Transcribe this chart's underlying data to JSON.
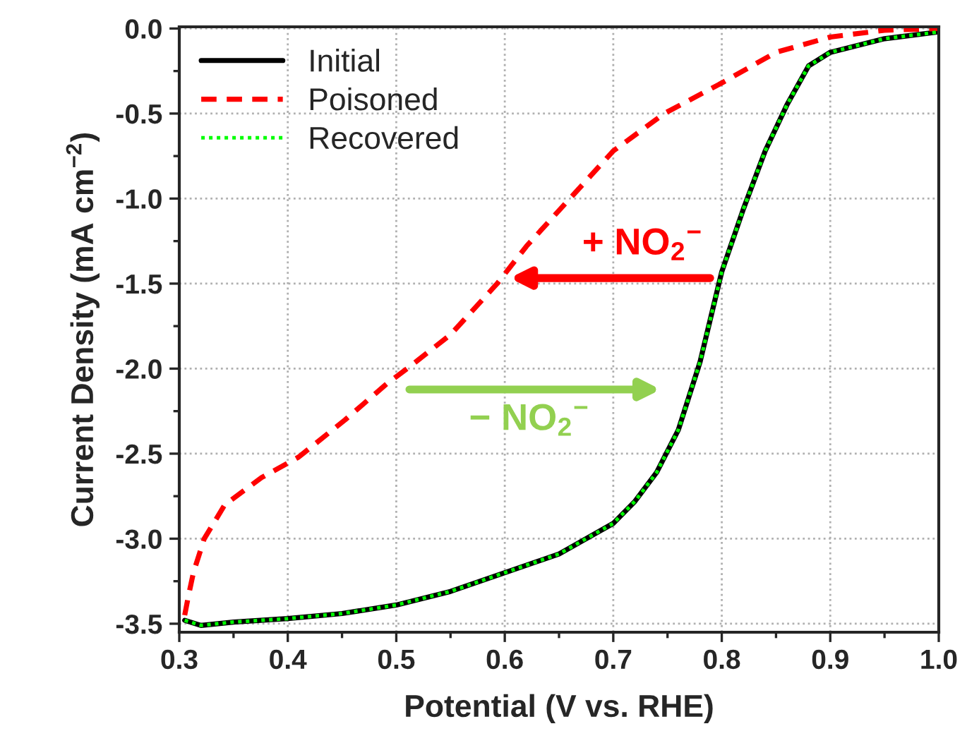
{
  "chart_data": {
    "type": "line",
    "xlabel": "Potential (V vs. RHE)",
    "ylabel": "Current Density (mA cm$^{−2}$)",
    "xlim": [
      0.3,
      1.0
    ],
    "xticks": [
      {
        "value": 0.3,
        "label": "0.3"
      },
      {
        "value": 0.4,
        "label": "0.4"
      },
      {
        "value": 0.5,
        "label": "0.5"
      },
      {
        "value": 0.6,
        "label": "0.6"
      },
      {
        "value": 0.7,
        "label": "0.7"
      },
      {
        "value": 0.8,
        "label": "0.8"
      },
      {
        "value": 0.9,
        "label": "0.9"
      },
      {
        "value": 1.0,
        "label": "1.0"
      }
    ],
    "ylim": [
      -3.55,
      0.01
    ],
    "yticks": [
      {
        "value": 0.0,
        "label": "0.0"
      },
      {
        "value": -0.5,
        "label": "-0.5"
      },
      {
        "value": -1.0,
        "label": "-1.0"
      },
      {
        "value": -1.5,
        "label": "-1.5"
      },
      {
        "value": -2.0,
        "label": "-2.0"
      },
      {
        "value": -2.5,
        "label": "-2.5"
      },
      {
        "value": -3.0,
        "label": "-3.0"
      },
      {
        "value": -3.5,
        "label": "-3.5"
      }
    ],
    "grid": true,
    "legend": "top left",
    "series": [
      {
        "name": "Initial",
        "color": "#000000",
        "line_style": "solid",
        "x": [
          0.305,
          0.32,
          0.35,
          0.4,
          0.45,
          0.5,
          0.55,
          0.6,
          0.65,
          0.7,
          0.72,
          0.74,
          0.76,
          0.78,
          0.8,
          0.82,
          0.84,
          0.86,
          0.88,
          0.9,
          0.95,
          1.0
        ],
        "values": [
          -3.48,
          -3.51,
          -3.49,
          -3.47,
          -3.44,
          -3.39,
          -3.31,
          -3.2,
          -3.09,
          -2.91,
          -2.78,
          -2.61,
          -2.36,
          -1.96,
          -1.43,
          -1.06,
          -0.72,
          -0.45,
          -0.22,
          -0.14,
          -0.06,
          -0.02
        ]
      },
      {
        "name": "Poisoned",
        "color": "#ff0000",
        "line_style": "dashed",
        "x": [
          0.305,
          0.308,
          0.313,
          0.323,
          0.342,
          0.376,
          0.41,
          0.453,
          0.491,
          0.51,
          0.55,
          0.593,
          0.62,
          0.66,
          0.7,
          0.747,
          0.8,
          0.85,
          0.9,
          0.95,
          1.0
        ],
        "values": [
          -3.45,
          -3.35,
          -3.2,
          -3.0,
          -2.8,
          -2.64,
          -2.52,
          -2.3,
          -2.09,
          -2.0,
          -1.8,
          -1.5,
          -1.28,
          -1.0,
          -0.72,
          -0.5,
          -0.32,
          -0.14,
          -0.05,
          -0.01,
          0.0
        ]
      },
      {
        "name": "Recovered",
        "color": "#00ff00",
        "line_style": "dotted",
        "x": [
          0.305,
          0.32,
          0.35,
          0.4,
          0.45,
          0.5,
          0.55,
          0.6,
          0.65,
          0.7,
          0.72,
          0.74,
          0.76,
          0.78,
          0.8,
          0.82,
          0.84,
          0.86,
          0.88,
          0.9,
          0.95,
          1.0
        ],
        "values": [
          -3.48,
          -3.51,
          -3.49,
          -3.47,
          -3.44,
          -3.39,
          -3.31,
          -3.2,
          -3.09,
          -2.91,
          -2.78,
          -2.61,
          -2.36,
          -1.96,
          -1.43,
          -1.06,
          -0.72,
          -0.45,
          -0.22,
          -0.14,
          -0.06,
          -0.02
        ]
      }
    ],
    "annotations": [
      "+ NO$_{2}$$^{−}$",
      "− NO$_{2}$$^{−}$"
    ]
  }
}
